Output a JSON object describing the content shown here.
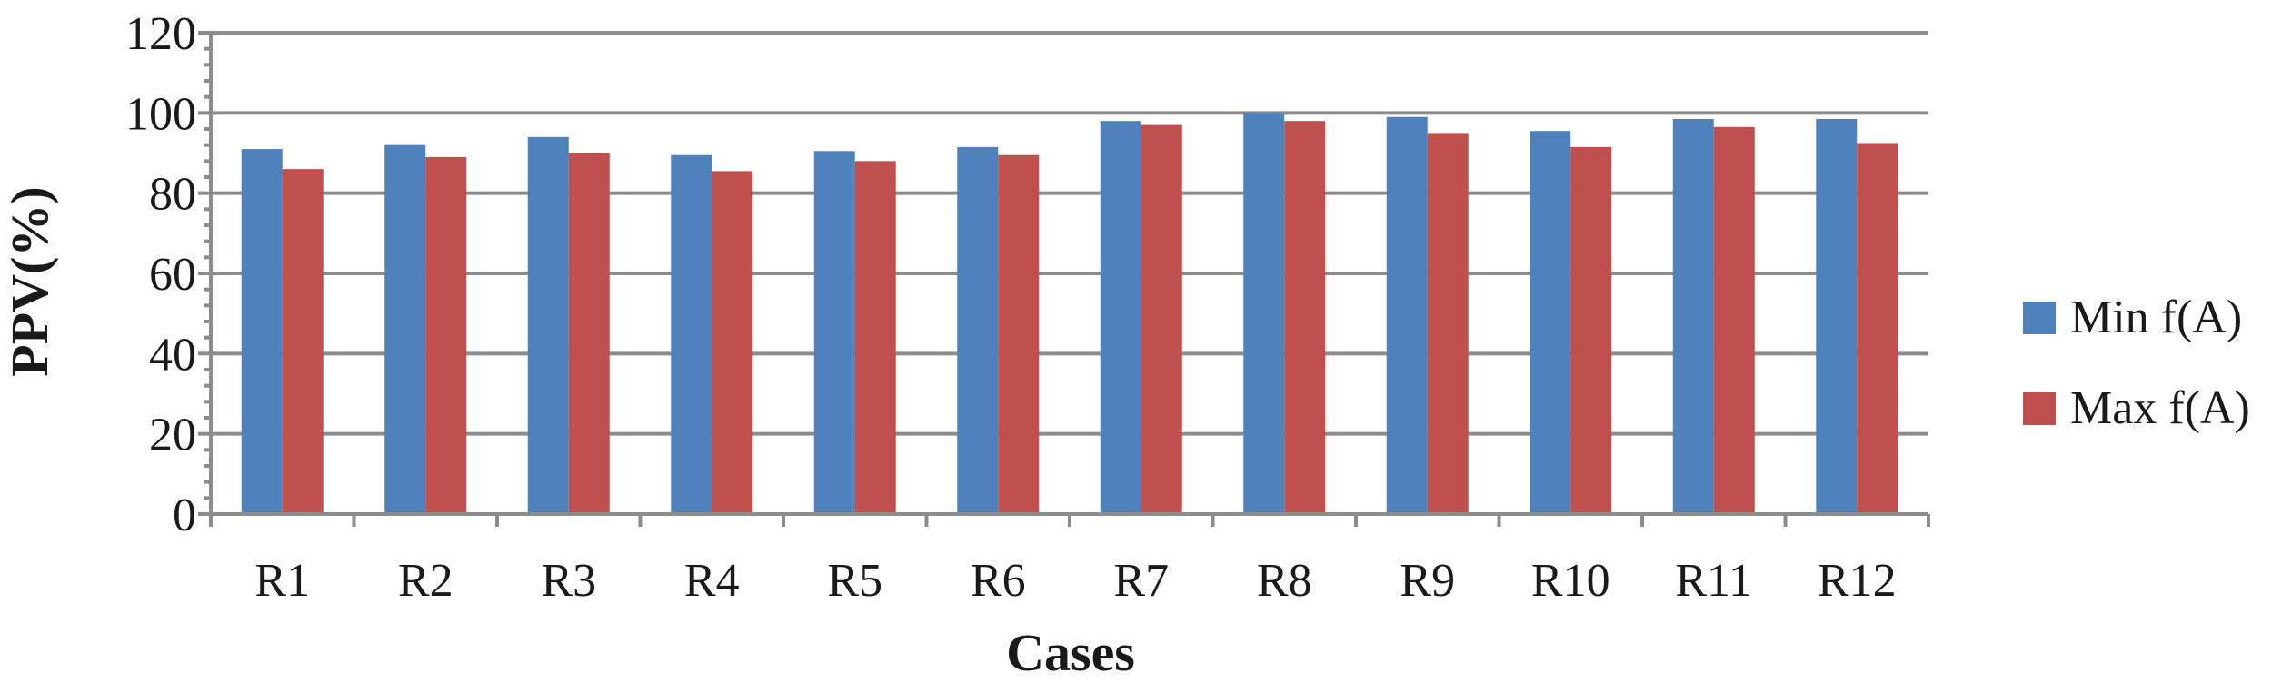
{
  "chart_data": {
    "type": "bar",
    "title": "",
    "xlabel": "Cases",
    "ylabel": "PPV(%)",
    "ylim": [
      0,
      120
    ],
    "ytick_step": 20,
    "grid": true,
    "legend_position": "right",
    "categories": [
      "R1",
      "R2",
      "R3",
      "R4",
      "R5",
      "R6",
      "R7",
      "R8",
      "R9",
      "R10",
      "R11",
      "R12"
    ],
    "series": [
      {
        "name": "Min f(A)",
        "color": "#4f81bd",
        "values": [
          91,
          92,
          94,
          89.5,
          90.5,
          91.5,
          98,
          100,
          99,
          95.5,
          98.5,
          98.5
        ]
      },
      {
        "name": "Max f(A)",
        "color": "#c0504d",
        "values": [
          86,
          89,
          90,
          85.5,
          88,
          89.5,
          97,
          98,
          95,
          91.5,
          96.5,
          92.5
        ]
      }
    ]
  },
  "colors": {
    "grid": "#8c8c8c",
    "axis": "#8c8c8c",
    "text": "#1a1a1a"
  }
}
